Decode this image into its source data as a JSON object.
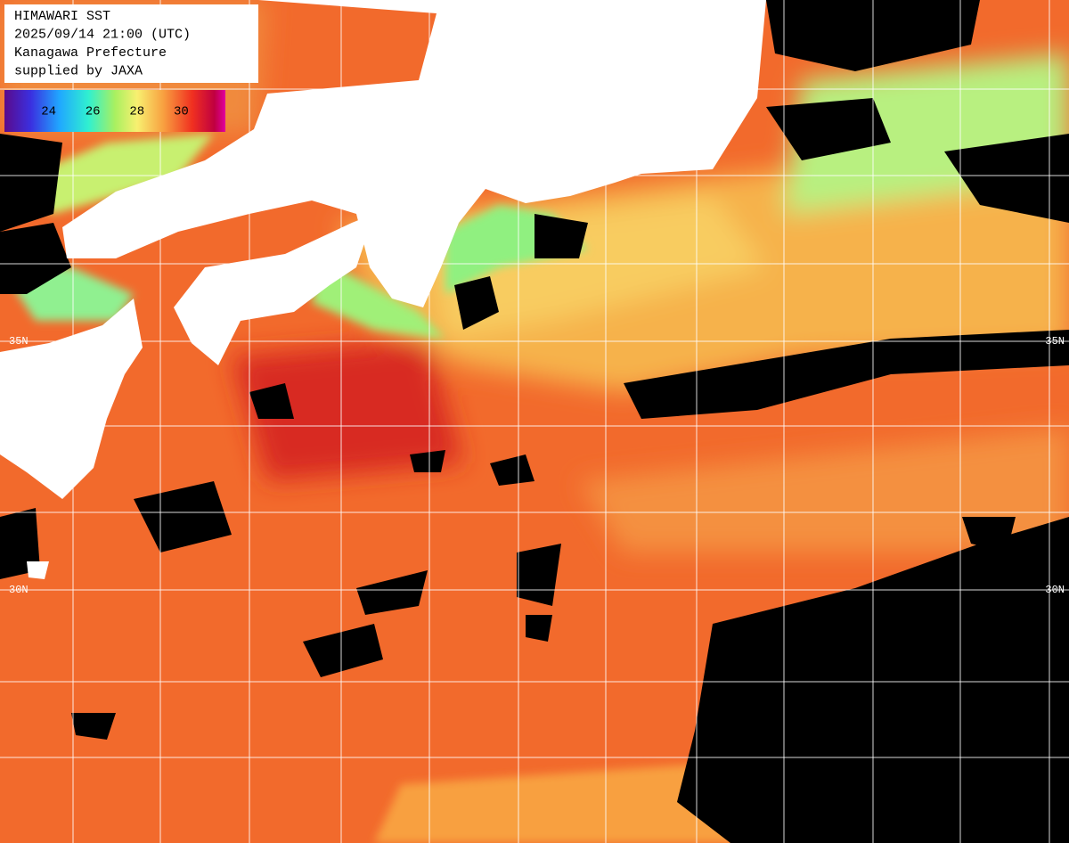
{
  "header": {
    "lines": [
      "HIMAWARI SST",
      "2025/09/14 21:00 (UTC)",
      "Kanagawa Prefecture",
      "supplied by JAXA"
    ]
  },
  "colorbar": {
    "range": [
      22,
      32
    ],
    "ticks": [
      24,
      26,
      28,
      30
    ]
  },
  "grid_labels": {
    "left": [
      "35N",
      "30N"
    ],
    "right": [
      "35N",
      "30N"
    ]
  }
}
